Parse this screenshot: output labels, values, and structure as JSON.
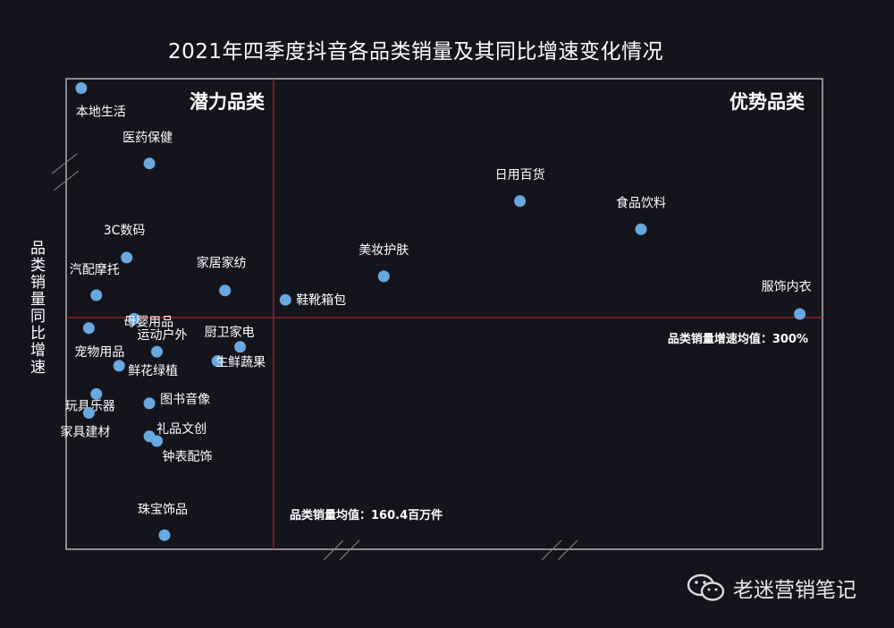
{
  "title": "2021年四季度抖音各品类销量及其同比增速变化情况",
  "ylabel": "品类销量同比增速",
  "watermark": "老迷营销笔记",
  "colors": {
    "background": "#14151c",
    "point": "#6aa8e0",
    "divider": "#a8262b",
    "frame": "#d9d9d9",
    "text": "#ffffff"
  },
  "chart_data": {
    "type": "scatter",
    "title": "2021年四季度抖音各品类销量及其同比增速变化情况",
    "xlabel": "",
    "ylabel": "品类销量同比增速",
    "axis_ticks_visible": false,
    "axis_breaks": true,
    "reference_lines": {
      "x_mean_label": "品类销量均值：160.4百万件",
      "y_mean_label": "品类销量增速均值：300%"
    },
    "quadrant_labels": {
      "top_left": "潜力品类",
      "top_right": "优势品类"
    },
    "note": "Coordinates are relative positions within the plotting area (0-100); the chart prints no axis scale.",
    "points": [
      {
        "name": "本地生活",
        "x": 2,
        "y": 98
      },
      {
        "name": "医药保健",
        "x": 11,
        "y": 82
      },
      {
        "name": "日用百货",
        "x": 60,
        "y": 74
      },
      {
        "name": "食品饮料",
        "x": 76,
        "y": 68
      },
      {
        "name": "3C数码",
        "x": 8,
        "y": 62
      },
      {
        "name": "美妆护肤",
        "x": 42,
        "y": 58
      },
      {
        "name": "家居家纺",
        "x": 21,
        "y": 55
      },
      {
        "name": "鞋靴箱包",
        "x": 29,
        "y": 53
      },
      {
        "name": "汽配摩托",
        "x": 4,
        "y": 54
      },
      {
        "name": "母婴用品",
        "x": 9,
        "y": 49
      },
      {
        "name": "服饰内衣",
        "x": 97,
        "y": 50
      },
      {
        "name": "宠物用品",
        "x": 3,
        "y": 47
      },
      {
        "name": "运动户外",
        "x": 12,
        "y": 42
      },
      {
        "name": "厨卫家电",
        "x": 23,
        "y": 43
      },
      {
        "name": "生鲜蔬果",
        "x": 20,
        "y": 40
      },
      {
        "name": "鲜花绿植",
        "x": 7,
        "y": 39
      },
      {
        "name": "玩具乐器",
        "x": 4,
        "y": 33
      },
      {
        "name": "图书音像",
        "x": 11,
        "y": 31
      },
      {
        "name": "家具建材",
        "x": 3,
        "y": 29
      },
      {
        "name": "礼品文创",
        "x": 11,
        "y": 24
      },
      {
        "name": "钟表配饰",
        "x": 12,
        "y": 23
      },
      {
        "name": "珠宝饰品",
        "x": 13,
        "y": 3
      }
    ]
  }
}
